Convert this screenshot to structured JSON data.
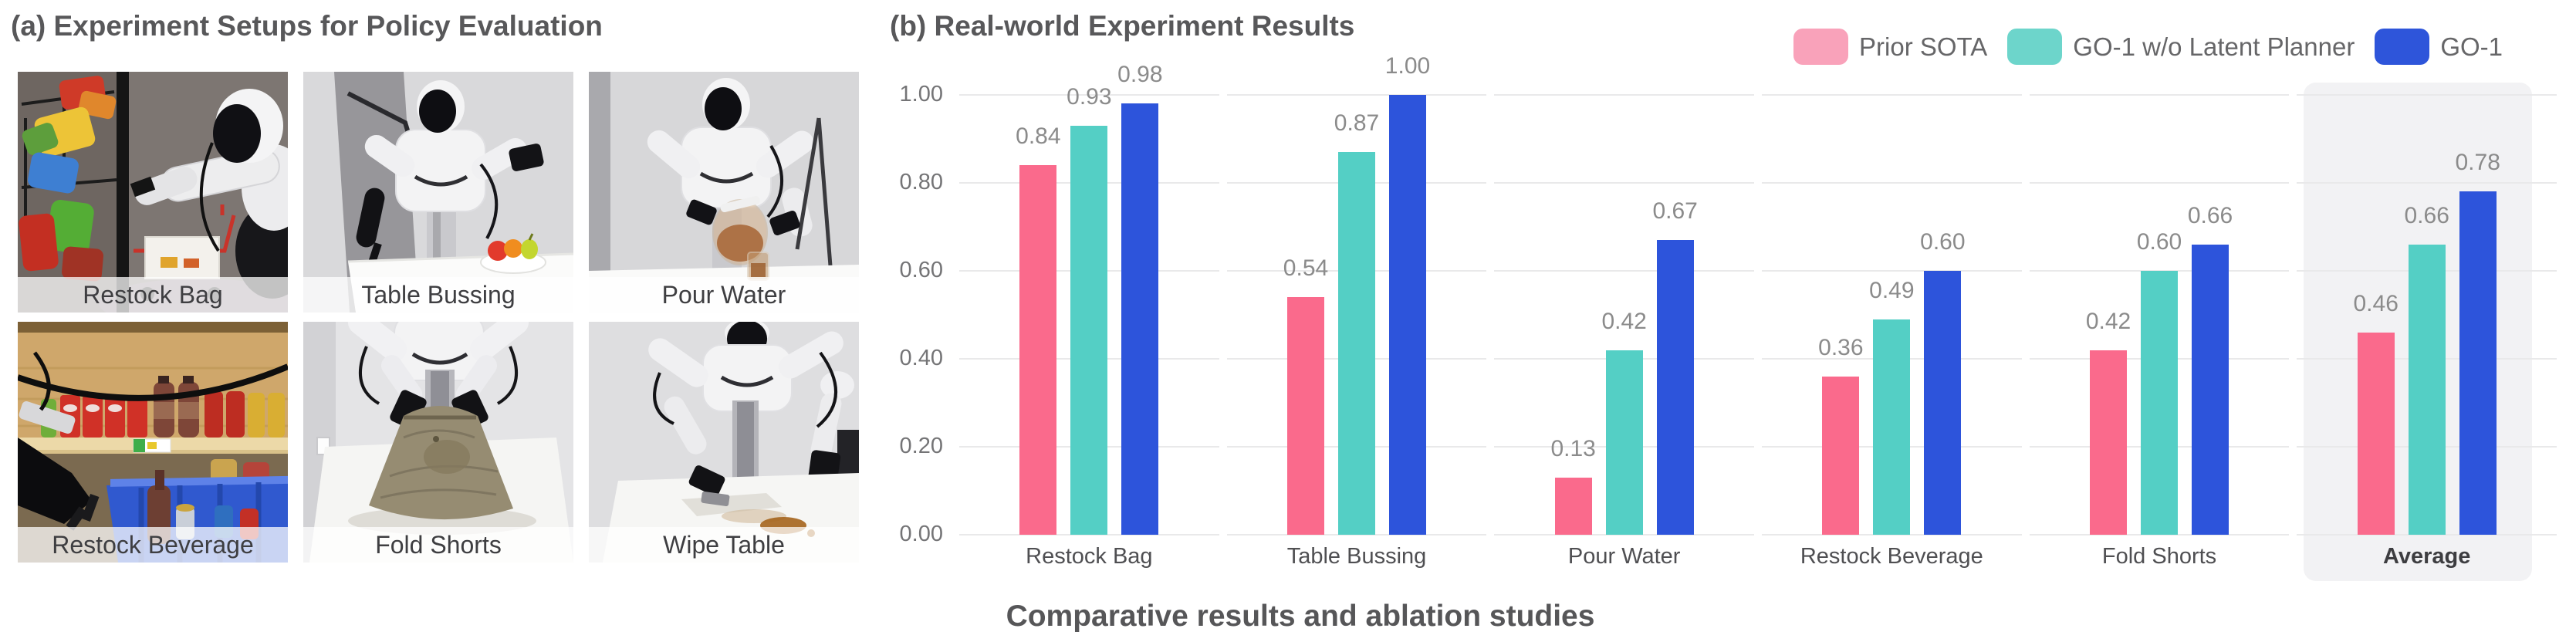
{
  "panel_a": {
    "title": "(a) Experiment Setups for Policy Evaluation",
    "setups": [
      {
        "label": "Restock Bag"
      },
      {
        "label": "Table Bussing"
      },
      {
        "label": "Pour Water"
      },
      {
        "label": "Restock Beverage"
      },
      {
        "label": "Fold Shorts"
      },
      {
        "label": "Wipe Table"
      }
    ]
  },
  "panel_b": {
    "title": "(b) Real-world Experiment Results",
    "caption": "Comparative results and ablation studies",
    "legend": [
      {
        "label": "Prior SOTA",
        "color": "#f9a2ba"
      },
      {
        "label": "GO-1 w/o Latent Planner",
        "color": "#6dd5cb"
      },
      {
        "label": "GO-1",
        "color": "#2e55da"
      }
    ]
  },
  "chart_data": {
    "type": "bar",
    "title": "(b) Real-world Experiment Results",
    "caption": "Comparative results and ablation studies",
    "categories": [
      "Restock Bag",
      "Table Bussing",
      "Pour Water",
      "Restock Beverage",
      "Fold Shorts",
      "Average"
    ],
    "series": [
      {
        "name": "Prior SOTA",
        "color": "#fa6a8c",
        "values": [
          0.84,
          0.54,
          0.13,
          0.36,
          0.42,
          0.46
        ]
      },
      {
        "name": "GO-1 w/o Latent Planner",
        "color": "#54cfc5",
        "values": [
          0.93,
          0.87,
          0.42,
          0.49,
          0.6,
          0.66
        ]
      },
      {
        "name": "GO-1",
        "color": "#2d54db",
        "values": [
          0.98,
          1.0,
          0.67,
          0.6,
          0.66,
          0.78
        ]
      }
    ],
    "ylim": [
      0,
      1
    ],
    "yticks": [
      0.0,
      0.2,
      0.4,
      0.6,
      0.8,
      1.0
    ],
    "grid": true,
    "legend_position": "top-right",
    "highlighted_category": "Average",
    "highlight_color": "#f2f2f4"
  }
}
